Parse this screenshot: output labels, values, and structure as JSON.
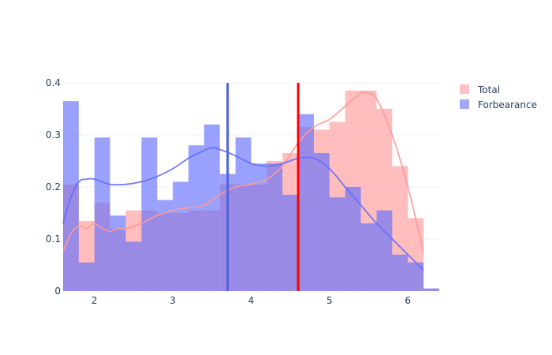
{
  "chart_data": {
    "type": "histogram",
    "x_range": [
      1.6,
      6.4
    ],
    "y_range": [
      0,
      0.4
    ],
    "x_ticks": [
      2,
      3,
      4,
      5,
      6
    ],
    "y_ticks": [
      0,
      0.1,
      0.2,
      0.3,
      0.4
    ],
    "x_tick_labels": [
      "2",
      "3",
      "4",
      "5",
      "6"
    ],
    "y_tick_labels": [
      "0",
      "0.1",
      "0.2",
      "0.3",
      "0.4"
    ],
    "bin_width": 0.2,
    "grid": true,
    "legend_position": "top-right",
    "series": [
      {
        "name": "Total",
        "color": "#ff9999",
        "bins": [
          {
            "x0": 1.6,
            "x1": 1.8,
            "y": 0.205
          },
          {
            "x0": 1.8,
            "x1": 2.0,
            "y": 0.135
          },
          {
            "x0": 2.0,
            "x1": 2.2,
            "y": 0.17
          },
          {
            "x0": 2.2,
            "x1": 2.4,
            "y": 0.12
          },
          {
            "x0": 2.4,
            "x1": 2.6,
            "y": 0.155
          },
          {
            "x0": 2.6,
            "x1": 2.8,
            "y": 0.155
          },
          {
            "x0": 2.8,
            "x1": 3.0,
            "y": 0.15
          },
          {
            "x0": 3.0,
            "x1": 3.2,
            "y": 0.15
          },
          {
            "x0": 3.2,
            "x1": 3.4,
            "y": 0.155
          },
          {
            "x0": 3.4,
            "x1": 3.6,
            "y": 0.155
          },
          {
            "x0": 3.6,
            "x1": 3.8,
            "y": 0.205
          },
          {
            "x0": 3.8,
            "x1": 4.0,
            "y": 0.205
          },
          {
            "x0": 4.0,
            "x1": 4.2,
            "y": 0.205
          },
          {
            "x0": 4.2,
            "x1": 4.4,
            "y": 0.25
          },
          {
            "x0": 4.4,
            "x1": 4.6,
            "y": 0.265
          },
          {
            "x0": 4.6,
            "x1": 4.8,
            "y": 0.315
          },
          {
            "x0": 4.8,
            "x1": 5.0,
            "y": 0.31
          },
          {
            "x0": 5.0,
            "x1": 5.2,
            "y": 0.325
          },
          {
            "x0": 5.2,
            "x1": 5.4,
            "y": 0.385
          },
          {
            "x0": 5.4,
            "x1": 5.6,
            "y": 0.385
          },
          {
            "x0": 5.6,
            "x1": 5.8,
            "y": 0.35
          },
          {
            "x0": 5.8,
            "x1": 6.0,
            "y": 0.24
          },
          {
            "x0": 6.0,
            "x1": 6.2,
            "y": 0.14
          },
          {
            "x0": 6.2,
            "x1": 6.4,
            "y": 0.005
          }
        ],
        "kde": [
          [
            1.6,
            0.075
          ],
          [
            1.7,
            0.11
          ],
          [
            1.8,
            0.125
          ],
          [
            1.9,
            0.12
          ],
          [
            2.0,
            0.13
          ],
          [
            2.1,
            0.12
          ],
          [
            2.2,
            0.115
          ],
          [
            2.3,
            0.12
          ],
          [
            2.4,
            0.12
          ],
          [
            2.6,
            0.13
          ],
          [
            2.8,
            0.145
          ],
          [
            3.0,
            0.155
          ],
          [
            3.2,
            0.16
          ],
          [
            3.4,
            0.165
          ],
          [
            3.6,
            0.185
          ],
          [
            3.8,
            0.2
          ],
          [
            4.0,
            0.205
          ],
          [
            4.2,
            0.215
          ],
          [
            4.4,
            0.24
          ],
          [
            4.6,
            0.285
          ],
          [
            4.8,
            0.315
          ],
          [
            5.0,
            0.33
          ],
          [
            5.2,
            0.355
          ],
          [
            5.4,
            0.38
          ],
          [
            5.5,
            0.38
          ],
          [
            5.6,
            0.37
          ],
          [
            5.8,
            0.3
          ],
          [
            6.0,
            0.2
          ],
          [
            6.2,
            0.075
          ]
        ],
        "vline": 4.6,
        "vline_color": "#ff0000"
      },
      {
        "name": "Forbearance",
        "color": "#636efa",
        "bins": [
          {
            "x0": 1.6,
            "x1": 1.8,
            "y": 0.365
          },
          {
            "x0": 1.8,
            "x1": 2.0,
            "y": 0.055
          },
          {
            "x0": 2.0,
            "x1": 2.2,
            "y": 0.295
          },
          {
            "x0": 2.2,
            "x1": 2.4,
            "y": 0.145
          },
          {
            "x0": 2.4,
            "x1": 2.6,
            "y": 0.095
          },
          {
            "x0": 2.6,
            "x1": 2.8,
            "y": 0.295
          },
          {
            "x0": 2.8,
            "x1": 3.0,
            "y": 0.175
          },
          {
            "x0": 3.0,
            "x1": 3.2,
            "y": 0.21
          },
          {
            "x0": 3.2,
            "x1": 3.4,
            "y": 0.28
          },
          {
            "x0": 3.4,
            "x1": 3.6,
            "y": 0.32
          },
          {
            "x0": 3.6,
            "x1": 3.8,
            "y": 0.225
          },
          {
            "x0": 3.8,
            "x1": 4.0,
            "y": 0.295
          },
          {
            "x0": 4.0,
            "x1": 4.2,
            "y": 0.245
          },
          {
            "x0": 4.2,
            "x1": 4.4,
            "y": 0.245
          },
          {
            "x0": 4.4,
            "x1": 4.6,
            "y": 0.185
          },
          {
            "x0": 4.6,
            "x1": 4.8,
            "y": 0.34
          },
          {
            "x0": 4.8,
            "x1": 5.0,
            "y": 0.265
          },
          {
            "x0": 5.0,
            "x1": 5.2,
            "y": 0.18
          },
          {
            "x0": 5.2,
            "x1": 5.4,
            "y": 0.2
          },
          {
            "x0": 5.4,
            "x1": 5.6,
            "y": 0.13
          },
          {
            "x0": 5.6,
            "x1": 5.8,
            "y": 0.155
          },
          {
            "x0": 5.8,
            "x1": 6.0,
            "y": 0.07
          },
          {
            "x0": 6.0,
            "x1": 6.2,
            "y": 0.055
          },
          {
            "x0": 6.2,
            "x1": 6.4,
            "y": 0.005
          }
        ],
        "kde": [
          [
            1.6,
            0.13
          ],
          [
            1.7,
            0.18
          ],
          [
            1.8,
            0.21
          ],
          [
            1.9,
            0.215
          ],
          [
            2.0,
            0.215
          ],
          [
            2.2,
            0.205
          ],
          [
            2.4,
            0.205
          ],
          [
            2.6,
            0.21
          ],
          [
            2.8,
            0.22
          ],
          [
            3.0,
            0.235
          ],
          [
            3.2,
            0.255
          ],
          [
            3.4,
            0.27
          ],
          [
            3.5,
            0.275
          ],
          [
            3.6,
            0.272
          ],
          [
            3.8,
            0.26
          ],
          [
            4.0,
            0.245
          ],
          [
            4.2,
            0.24
          ],
          [
            4.4,
            0.245
          ],
          [
            4.6,
            0.255
          ],
          [
            4.8,
            0.255
          ],
          [
            5.0,
            0.235
          ],
          [
            5.2,
            0.2
          ],
          [
            5.4,
            0.165
          ],
          [
            5.6,
            0.13
          ],
          [
            5.8,
            0.1
          ],
          [
            6.0,
            0.07
          ],
          [
            6.2,
            0.04
          ]
        ],
        "vline": 3.7,
        "vline_color": "#4f63d9"
      }
    ]
  }
}
